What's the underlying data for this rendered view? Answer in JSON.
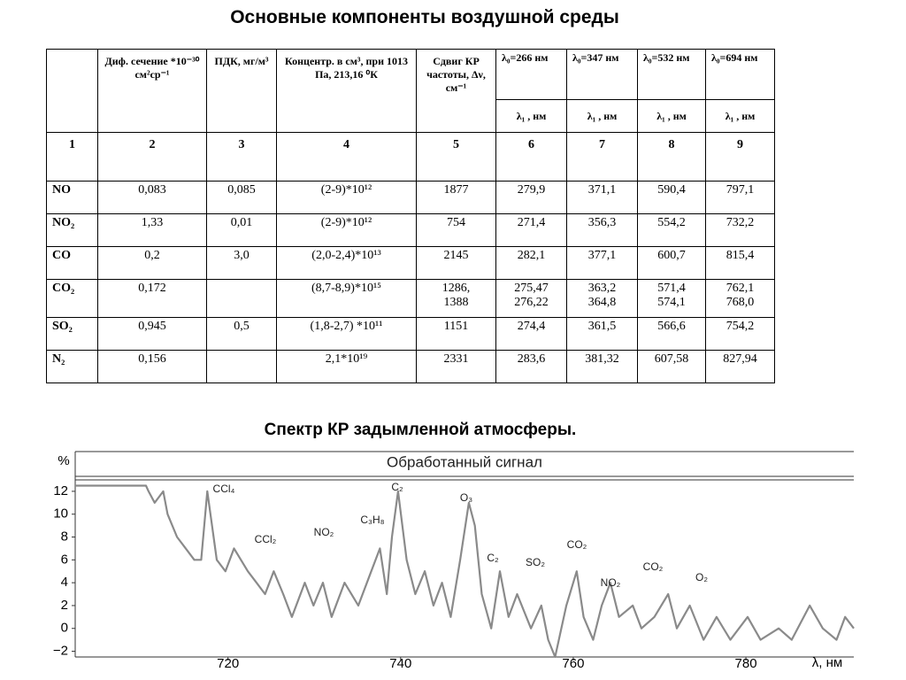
{
  "title": "Основные компоненты  воздушной среды",
  "table": {
    "header": [
      "Диф. сечение *10⁻³⁰ см²ср⁻¹",
      "ПДК, мг/м³",
      "Концентр. в см³, при 1013 Па, 213,16 ⁰К",
      "Сдвиг КР частоты, Δν,  см⁻¹"
    ],
    "lambda0": [
      "λ₀=266 нм",
      "λ₀=347 нм",
      "λ₀=532 нм",
      "λ₀=694 нм"
    ],
    "lambda1": [
      "λ₁ , нм",
      "λ₁ , нм",
      "λ₁ , нм",
      "λ₁ , нм"
    ],
    "column_numbers": [
      1,
      2,
      3,
      4,
      5,
      6,
      7,
      8,
      9
    ],
    "rows": [
      [
        "NO",
        "0,083",
        "0,085",
        "(2-9)*10¹²",
        "1877",
        "279,9",
        "371,1",
        "590,4",
        "797,1"
      ],
      [
        "NO₂",
        "1,33",
        "0,01",
        "(2-9)*10¹²",
        "754",
        "271,4",
        "356,3",
        "554,2",
        "732,2"
      ],
      [
        "CO",
        "0,2",
        "3,0",
        "(2,0-2,4)*10¹³",
        "2145",
        "282,1",
        "377,1",
        "600,7",
        "815,4"
      ],
      [
        "CO₂",
        "0,172",
        null,
        "(8,7-8,9)*10¹⁵",
        "1286,\n1388",
        "275,47\n276,22",
        "363,2\n364,8",
        "571,4\n574,1",
        "762,1\n768,0"
      ],
      [
        "SO₂",
        "0,945",
        "0,5",
        "(1,8-2,7) *10¹¹",
        "1151",
        "274,4",
        "361,5",
        "566,6",
        "754,2"
      ],
      [
        "N₂",
        "0,156",
        null,
        "2,1*10¹⁹",
        "2331",
        "283,6",
        "381,32",
        "607,58",
        "827,94"
      ]
    ]
  },
  "chart_heading": "Спектр КР  задымленной  атмосферы.",
  "chart_data": {
    "type": "line",
    "title": "Обработанный сигнал",
    "y_label": "%",
    "x_label": "λ,   нм",
    "xlim": [
      702.3,
      792.5
    ],
    "ylim": [
      -2.5,
      13
    ],
    "xticks": [
      720,
      740,
      760,
      780
    ],
    "yticks": [
      12,
      10,
      8,
      6,
      4,
      2,
      0,
      {
        "value": -2,
        "label": "−2"
      }
    ],
    "annotations": [
      "CCl₄",
      "CCl₂",
      "NO₂",
      "C₃H₈",
      "C₂",
      "O₃",
      "C₂",
      "SO₂",
      "CO₂",
      "NO₂",
      "CO₂",
      "O₂"
    ],
    "series": [
      {
        "color": "#8a8a8a",
        "x": [
          702.3,
          710.5,
          710.8,
          711.5,
          712.5,
          713.0,
          714.1,
          715.1,
          716.1,
          716.9,
          717.6,
          718.7,
          719.7,
          720.7,
          722.3,
          723.3,
          724.3,
          725.3,
          726.4,
          727.4,
          728.9,
          729.9,
          731.0,
          732.0,
          733.5,
          735.1,
          736.6,
          737.6,
          738.4,
          739.0,
          739.7,
          740.7,
          741.7,
          742.8,
          743.8,
          744.8,
          745.8,
          746.9,
          747.9,
          748.6,
          749.4,
          750.5,
          751.5,
          752.5,
          753.5,
          755.1,
          756.3,
          757.1,
          757.9,
          759.2,
          760.4,
          761.2,
          762.3,
          763.3,
          764.3,
          765.3,
          766.9,
          767.9,
          769.4,
          771.0,
          772.0,
          773.5,
          775.1,
          776.6,
          778.2,
          780.2,
          781.7,
          783.8,
          785.3,
          787.4,
          788.9,
          790.5,
          791.5,
          792.5
        ],
        "values": [
          12.5,
          12.5,
          12,
          11,
          12,
          10,
          8,
          7,
          6,
          6,
          12,
          6,
          5,
          7,
          5,
          4,
          3,
          5,
          3,
          1,
          4,
          2,
          4,
          1,
          4,
          2,
          5,
          7,
          3,
          8,
          12,
          6,
          3,
          5,
          2,
          4,
          1,
          6,
          11,
          9,
          3,
          0,
          5,
          1,
          3,
          0,
          2,
          -1,
          -2.5,
          2,
          5,
          1,
          -1,
          2,
          4,
          1,
          2,
          0,
          1,
          3,
          0,
          2,
          -1,
          1,
          -1,
          1,
          -1,
          0,
          -1,
          2,
          0,
          -1,
          1,
          0
        ]
      }
    ]
  }
}
